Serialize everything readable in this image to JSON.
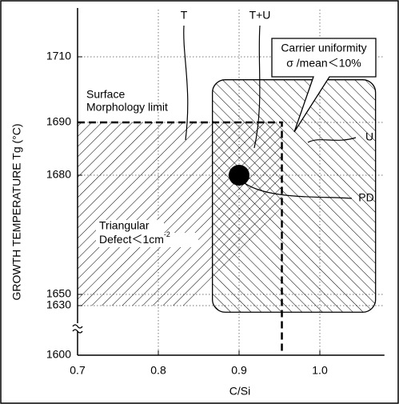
{
  "chart_data": {
    "type": "region",
    "x_label": "C/Si",
    "y_label": "GROWTH TEMPERATURE Tg (°C)",
    "xlim": [
      0.7,
      1.08
    ],
    "ylim": [
      1600,
      1720
    ],
    "xticks": [
      0.7,
      0.8,
      0.9,
      {
        "value": 1.0,
        "label": "1.0"
      }
    ],
    "yticks": [
      1600,
      1630,
      1650,
      1680,
      1690,
      1710
    ],
    "grid": true,
    "regions": [
      {
        "name": "T",
        "label": [
          "Triangular",
          "Defect＜1cm",
          "-2"
        ],
        "x": [
          0.7,
          0.953,
          0.953,
          0.837,
          0.7
        ],
        "y": [
          1690,
          1690,
          1672,
          1630,
          1630
        ]
      },
      {
        "name": "U",
        "label": [
          "Carrier uniformity",
          "σ /mean＜10%"
        ],
        "x": [
          0.867,
          1.069
        ],
        "y": [
          1626,
          1703
        ]
      }
    ],
    "overlap_label": "T+U",
    "limit": {
      "label": [
        "Surface",
        "Morphology limit"
      ],
      "x": [
        0.7,
        0.953,
        0.953
      ],
      "y": [
        1690,
        1690,
        1600
      ]
    },
    "point": {
      "name": "PD",
      "x": 0.9,
      "y": 1680
    }
  }
}
